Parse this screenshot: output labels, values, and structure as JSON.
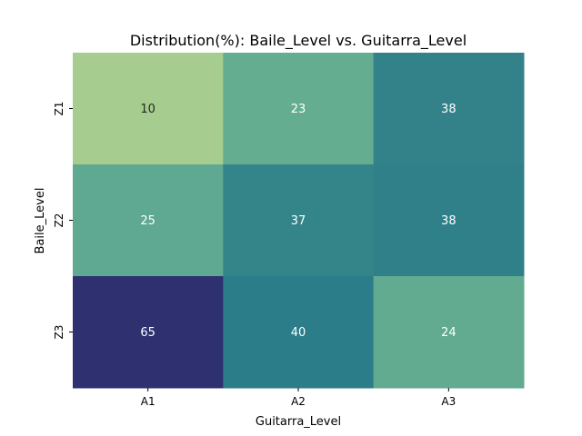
{
  "chart_data": {
    "type": "heatmap",
    "title": "Distribution(%): Baile_Level vs. Guitarra_Level",
    "xlabel": "Guitarra_Level",
    "ylabel": "Baile_Level",
    "x_categories": [
      "A1",
      "A2",
      "A3"
    ],
    "y_categories": [
      "Z1",
      "Z2",
      "Z3"
    ],
    "values": [
      [
        10,
        23,
        38
      ],
      [
        25,
        37,
        38
      ],
      [
        65,
        40,
        24
      ]
    ],
    "colormap": "crest",
    "colorbar": false,
    "grid": false,
    "colors": {
      "cells": [
        [
          "#a6cd8f",
          "#65ad90",
          "#348289"
        ],
        [
          "#5fa892",
          "#34858a",
          "#308089"
        ],
        [
          "#2e3070",
          "#2b7d8a",
          "#62aa90"
        ]
      ],
      "text_light": "#ffffff",
      "text_dark": "#262626"
    }
  }
}
